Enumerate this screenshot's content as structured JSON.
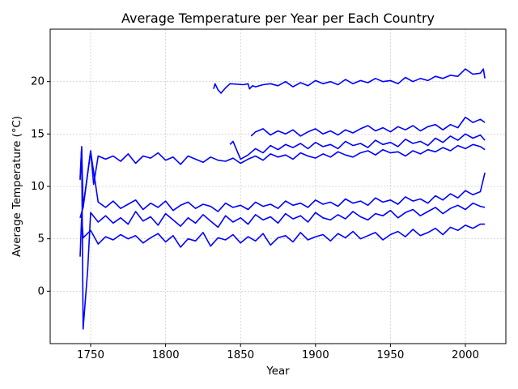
{
  "chart_data": {
    "type": "line",
    "title": "Average Temperature per Year per Each Country",
    "xlabel": "Year",
    "ylabel": "Average Temperature (°C)",
    "xlim": [
      1723,
      2027
    ],
    "ylim": [
      -5,
      25
    ],
    "xticks": [
      1750,
      1800,
      1850,
      1900,
      1950,
      2000
    ],
    "yticks": [
      0,
      5,
      10,
      15,
      20
    ],
    "grid": true,
    "color": "#0000ff",
    "series": [
      {
        "x": [
          1743,
          1744,
          1745,
          1750,
          1755,
          1760,
          1765,
          1770,
          1775,
          1780,
          1785,
          1790,
          1795,
          1800,
          1805,
          1810,
          1815,
          1820,
          1825,
          1830,
          1835,
          1840,
          1845,
          1850,
          1855,
          1860,
          1865,
          1870,
          1875,
          1880,
          1885,
          1890,
          1895,
          1900,
          1905,
          1910,
          1915,
          1920,
          1925,
          1930,
          1935,
          1940,
          1945,
          1950,
          1955,
          1960,
          1965,
          1970,
          1975,
          1980,
          1985,
          1990,
          1995,
          2000,
          2005,
          2010,
          2013
        ],
        "y": [
          3.3,
          7.2,
          5.1,
          5.8,
          4.5,
          5.2,
          4.9,
          5.4,
          5.0,
          5.3,
          4.6,
          5.1,
          5.5,
          4.7,
          5.3,
          4.2,
          5.0,
          4.8,
          5.6,
          4.3,
          5.1,
          4.9,
          5.4,
          4.6,
          5.2,
          4.8,
          5.5,
          4.4,
          5.1,
          5.3,
          4.7,
          5.6,
          4.9,
          5.2,
          5.4,
          4.8,
          5.5,
          5.1,
          5.7,
          5.0,
          5.3,
          5.6,
          4.9,
          5.4,
          5.7,
          5.2,
          5.9,
          5.3,
          5.6,
          6.0,
          5.4,
          6.1,
          5.8,
          6.3,
          6.0,
          6.4,
          6.4
        ]
      },
      {
        "x": [
          1743,
          1744,
          1745,
          1748,
          1750,
          1755,
          1760,
          1765,
          1770,
          1775,
          1780,
          1785,
          1790,
          1795,
          1800,
          1805,
          1810,
          1815,
          1820,
          1825,
          1830,
          1835,
          1840,
          1845,
          1850,
          1855,
          1860,
          1865,
          1870,
          1875,
          1880,
          1885,
          1890,
          1895,
          1900,
          1905,
          1910,
          1915,
          1920,
          1925,
          1930,
          1935,
          1940,
          1945,
          1950,
          1955,
          1960,
          1965,
          1970,
          1975,
          1980,
          1985,
          1990,
          1995,
          2000,
          2005,
          2010,
          2013
        ],
        "y": [
          10.6,
          13.8,
          -3.6,
          2.0,
          7.5,
          6.6,
          7.2,
          6.5,
          7.0,
          6.4,
          7.6,
          6.7,
          7.1,
          6.3,
          7.4,
          6.8,
          6.2,
          7.0,
          6.5,
          7.3,
          6.7,
          6.1,
          7.2,
          6.6,
          7.0,
          6.4,
          7.3,
          6.8,
          7.1,
          6.5,
          7.4,
          6.9,
          7.2,
          6.6,
          7.5,
          7.0,
          6.8,
          7.3,
          6.9,
          7.6,
          7.1,
          6.8,
          7.4,
          7.2,
          7.7,
          7.0,
          7.5,
          7.8,
          7.2,
          7.6,
          8.0,
          7.4,
          7.9,
          8.2,
          7.8,
          8.4,
          8.1,
          8.0
        ]
      },
      {
        "x": [
          1743,
          1745,
          1750,
          1755,
          1760,
          1765,
          1770,
          1775,
          1780,
          1785,
          1790,
          1795,
          1800,
          1805,
          1810,
          1815,
          1820,
          1825,
          1830,
          1835,
          1840,
          1845,
          1850,
          1855,
          1860,
          1865,
          1870,
          1875,
          1880,
          1885,
          1890,
          1895,
          1900,
          1905,
          1910,
          1915,
          1920,
          1925,
          1930,
          1935,
          1940,
          1945,
          1950,
          1955,
          1960,
          1965,
          1970,
          1975,
          1980,
          1985,
          1990,
          1995,
          2000,
          2005,
          2010,
          2013
        ],
        "y": [
          7.0,
          8.0,
          13.3,
          8.5,
          8.0,
          8.6,
          7.9,
          8.3,
          8.7,
          7.8,
          8.4,
          8.0,
          8.6,
          7.7,
          8.2,
          8.5,
          7.9,
          8.3,
          8.1,
          7.6,
          8.4,
          8.0,
          8.2,
          7.8,
          8.5,
          8.1,
          8.3,
          7.9,
          8.6,
          8.2,
          8.4,
          8.0,
          8.7,
          8.3,
          8.5,
          8.1,
          8.8,
          8.4,
          8.6,
          8.2,
          8.9,
          8.5,
          8.7,
          8.3,
          9.0,
          8.6,
          8.8,
          8.4,
          9.1,
          8.7,
          9.3,
          8.9,
          9.6,
          9.2,
          9.5,
          11.3
        ]
      },
      {
        "x": [
          1743,
          1744,
          1745,
          1750,
          1752,
          1755,
          1760,
          1765,
          1770,
          1775,
          1780,
          1785,
          1790,
          1795,
          1800,
          1805,
          1810,
          1815,
          1820,
          1825,
          1830,
          1835,
          1840,
          1845,
          1850,
          1855,
          1860,
          1865,
          1870,
          1875,
          1880,
          1885,
          1890,
          1895,
          1900,
          1905,
          1910,
          1915,
          1920,
          1925,
          1930,
          1935,
          1940,
          1945,
          1950,
          1955,
          1960,
          1965,
          1970,
          1975,
          1980,
          1985,
          1990,
          1995,
          2000,
          2005,
          2010,
          2013
        ],
        "y": [
          10.8,
          13.7,
          8.0,
          13.4,
          10.2,
          12.9,
          12.6,
          12.9,
          12.4,
          13.1,
          12.2,
          12.9,
          12.7,
          13.2,
          12.5,
          12.8,
          12.1,
          12.9,
          12.6,
          12.3,
          12.8,
          12.5,
          12.4,
          12.7,
          12.2,
          12.6,
          12.9,
          12.5,
          13.1,
          12.8,
          13.0,
          12.6,
          13.2,
          12.9,
          12.7,
          13.1,
          12.8,
          13.3,
          13.0,
          12.8,
          13.2,
          13.4,
          13.0,
          13.5,
          13.2,
          13.3,
          12.9,
          13.4,
          13.1,
          13.5,
          13.3,
          13.7,
          13.4,
          13.9,
          13.6,
          14.0,
          13.8,
          13.5
        ]
      },
      {
        "x": [
          1843,
          1845,
          1850,
          1855,
          1860,
          1865,
          1870,
          1875,
          1880,
          1885,
          1890,
          1895,
          1900,
          1905,
          1910,
          1915,
          1920,
          1925,
          1930,
          1935,
          1940,
          1945,
          1950,
          1955,
          1960,
          1965,
          1970,
          1975,
          1980,
          1985,
          1990,
          1995,
          2000,
          2005,
          2010,
          2013
        ],
        "y": [
          14.0,
          14.3,
          12.6,
          13.0,
          13.6,
          13.2,
          13.9,
          13.5,
          14.0,
          13.7,
          14.1,
          13.6,
          14.2,
          13.8,
          14.0,
          13.6,
          14.3,
          13.9,
          14.1,
          13.7,
          14.4,
          14.0,
          14.2,
          13.8,
          14.5,
          14.1,
          14.3,
          13.9,
          14.6,
          14.2,
          14.8,
          14.4,
          15.0,
          14.6,
          14.9,
          14.4
        ]
      },
      {
        "x": [
          1857,
          1860,
          1865,
          1870,
          1875,
          1880,
          1885,
          1890,
          1895,
          1900,
          1905,
          1910,
          1915,
          1920,
          1925,
          1930,
          1935,
          1940,
          1945,
          1950,
          1955,
          1960,
          1965,
          1970,
          1975,
          1980,
          1985,
          1990,
          1995,
          2000,
          2005,
          2010,
          2013
        ],
        "y": [
          14.8,
          15.2,
          15.5,
          14.9,
          15.3,
          15.0,
          15.4,
          14.8,
          15.2,
          15.5,
          15.0,
          15.3,
          14.9,
          15.4,
          15.1,
          15.5,
          15.8,
          15.3,
          15.6,
          15.2,
          15.7,
          15.4,
          15.8,
          15.3,
          15.7,
          15.9,
          15.4,
          15.9,
          15.6,
          16.6,
          16.1,
          16.4,
          16.1
        ]
      },
      {
        "x": [
          1832,
          1833,
          1835,
          1837,
          1840,
          1843,
          1852,
          1855,
          1856,
          1858,
          1860,
          1865,
          1870,
          1875,
          1880,
          1885,
          1890,
          1895,
          1900,
          1905,
          1910,
          1915,
          1920,
          1925,
          1930,
          1935,
          1940,
          1945,
          1950,
          1955,
          1960,
          1965,
          1970,
          1975,
          1980,
          1985,
          1990,
          1995,
          2000,
          2005,
          2010,
          2012,
          2013
        ],
        "y": [
          19.3,
          19.8,
          19.2,
          18.9,
          19.4,
          19.8,
          19.7,
          19.8,
          19.3,
          19.6,
          19.5,
          19.7,
          19.8,
          19.6,
          20.0,
          19.5,
          19.9,
          19.6,
          20.1,
          19.8,
          20.0,
          19.7,
          20.2,
          19.8,
          20.1,
          19.9,
          20.3,
          20.0,
          20.1,
          19.8,
          20.4,
          20.0,
          20.3,
          20.1,
          20.5,
          20.3,
          20.6,
          20.5,
          21.2,
          20.7,
          20.8,
          21.2,
          20.3
        ]
      }
    ]
  }
}
